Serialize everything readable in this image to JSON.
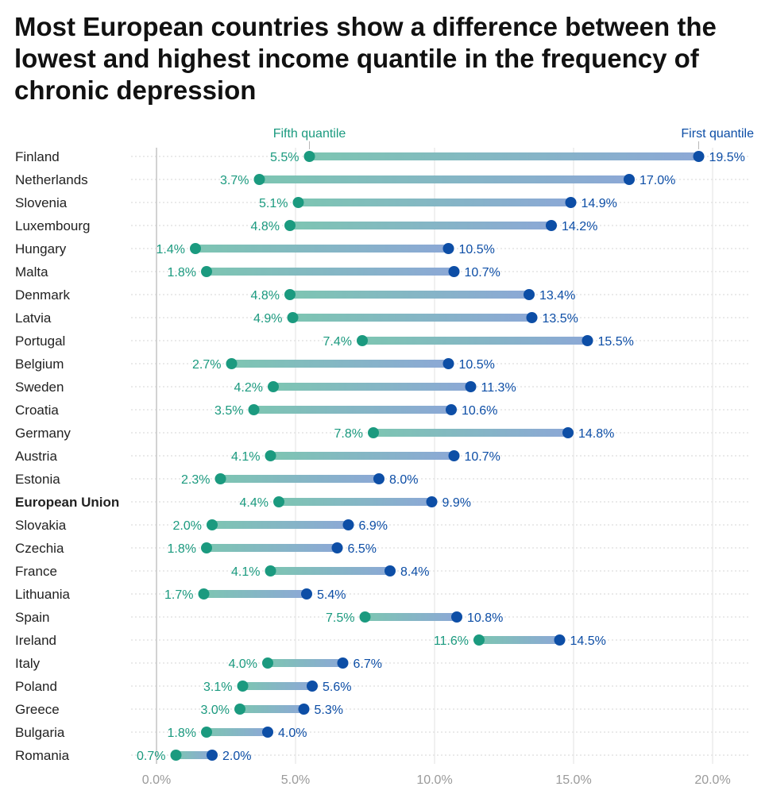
{
  "colors": {
    "fifth": "#1b9a7f",
    "first": "#0d4ea6",
    "grid": "#d0d0d0",
    "tick": "#9a9a9a",
    "label": "#222222",
    "title": "#111111"
  },
  "chart_data": {
    "type": "dumbbell",
    "title": "Most European countries show a difference between the lowest and highest income quantile in the frequency of chronic depression",
    "xlim": [
      0,
      21.5
    ],
    "x_ticks": [
      {
        "value": 0,
        "label": "0.0%"
      },
      {
        "value": 5,
        "label": "5.0%"
      },
      {
        "value": 10,
        "label": "10.0%"
      },
      {
        "value": 15,
        "label": "15.0%"
      },
      {
        "value": 20,
        "label": "20.0%"
      }
    ],
    "grid": true,
    "series": [
      {
        "key": "fifth",
        "name": "Fifth quantile",
        "color": "#1b9a7f"
      },
      {
        "key": "first",
        "name": "First quantile",
        "color": "#0d4ea6"
      }
    ],
    "rows": [
      {
        "country": "Finland",
        "fifth": 5.5,
        "first": 19.5,
        "fifth_label": "5.5%",
        "first_label": "19.5%"
      },
      {
        "country": "Netherlands",
        "fifth": 3.7,
        "first": 17.0,
        "fifth_label": "3.7%",
        "first_label": "17.0%"
      },
      {
        "country": "Slovenia",
        "fifth": 5.1,
        "first": 14.9,
        "fifth_label": "5.1%",
        "first_label": "14.9%"
      },
      {
        "country": "Luxembourg",
        "fifth": 4.8,
        "first": 14.2,
        "fifth_label": "4.8%",
        "first_label": "14.2%"
      },
      {
        "country": "Hungary",
        "fifth": 1.4,
        "first": 10.5,
        "fifth_label": "1.4%",
        "first_label": "10.5%"
      },
      {
        "country": "Malta",
        "fifth": 1.8,
        "first": 10.7,
        "fifth_label": "1.8%",
        "first_label": "10.7%"
      },
      {
        "country": "Denmark",
        "fifth": 4.8,
        "first": 13.4,
        "fifth_label": "4.8%",
        "first_label": "13.4%"
      },
      {
        "country": "Latvia",
        "fifth": 4.9,
        "first": 13.5,
        "fifth_label": "4.9%",
        "first_label": "13.5%"
      },
      {
        "country": "Portugal",
        "fifth": 7.4,
        "first": 15.5,
        "fifth_label": "7.4%",
        "first_label": "15.5%"
      },
      {
        "country": "Belgium",
        "fifth": 2.7,
        "first": 10.5,
        "fifth_label": "2.7%",
        "first_label": "10.5%"
      },
      {
        "country": "Sweden",
        "fifth": 4.2,
        "first": 11.3,
        "fifth_label": "4.2%",
        "first_label": "11.3%"
      },
      {
        "country": "Croatia",
        "fifth": 3.5,
        "first": 10.6,
        "fifth_label": "3.5%",
        "first_label": "10.6%"
      },
      {
        "country": "Germany",
        "fifth": 7.8,
        "first": 14.8,
        "fifth_label": "7.8%",
        "first_label": "14.8%"
      },
      {
        "country": "Austria",
        "fifth": 4.1,
        "first": 10.7,
        "fifth_label": "4.1%",
        "first_label": "10.7%"
      },
      {
        "country": "Estonia",
        "fifth": 2.3,
        "first": 8.0,
        "fifth_label": "2.3%",
        "first_label": "8.0%"
      },
      {
        "country": "European Union",
        "fifth": 4.4,
        "first": 9.9,
        "fifth_label": "4.4%",
        "first_label": "9.9%",
        "bold": true
      },
      {
        "country": "Slovakia",
        "fifth": 2.0,
        "first": 6.9,
        "fifth_label": "2.0%",
        "first_label": "6.9%"
      },
      {
        "country": "Czechia",
        "fifth": 1.8,
        "first": 6.5,
        "fifth_label": "1.8%",
        "first_label": "6.5%"
      },
      {
        "country": "France",
        "fifth": 4.1,
        "first": 8.4,
        "fifth_label": "4.1%",
        "first_label": "8.4%"
      },
      {
        "country": "Lithuania",
        "fifth": 1.7,
        "first": 5.4,
        "fifth_label": "1.7%",
        "first_label": "5.4%"
      },
      {
        "country": "Spain",
        "fifth": 7.5,
        "first": 10.8,
        "fifth_label": "7.5%",
        "first_label": "10.8%"
      },
      {
        "country": "Ireland",
        "fifth": 11.6,
        "first": 14.5,
        "fifth_label": "11.6%",
        "first_label": "14.5%"
      },
      {
        "country": "Italy",
        "fifth": 4.0,
        "first": 6.7,
        "fifth_label": "4.0%",
        "first_label": "6.7%"
      },
      {
        "country": "Poland",
        "fifth": 3.1,
        "first": 5.6,
        "fifth_label": "3.1%",
        "first_label": "5.6%"
      },
      {
        "country": "Greece",
        "fifth": 3.0,
        "first": 5.3,
        "fifth_label": "3.0%",
        "first_label": "5.3%"
      },
      {
        "country": "Bulgaria",
        "fifth": 1.8,
        "first": 4.0,
        "fifth_label": "1.8%",
        "first_label": "4.0%"
      },
      {
        "country": "Romania",
        "fifth": 0.7,
        "first": 2.0,
        "fifth_label": "0.7%",
        "first_label": "2.0%"
      }
    ]
  }
}
